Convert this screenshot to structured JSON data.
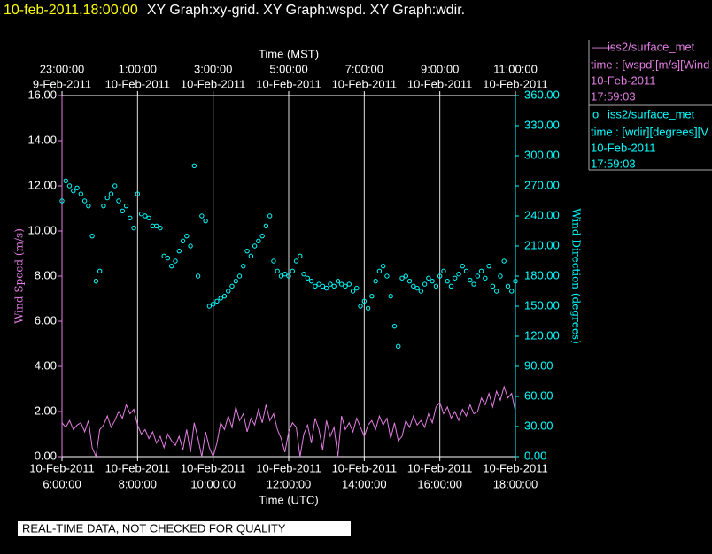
{
  "chart_data": {
    "type": "line_scatter",
    "title_time": "10-feb-2011,18:00:00",
    "title": "XY Graph:xy-grid.  XY Graph:wspd.  XY Graph:wdir.",
    "xlabel": "Time (UTC)",
    "x2label": "Time (MST)",
    "ylabel": "Wind Speed (m/s)",
    "y2label": "Wind Direction (degrees)",
    "note": "REAL-TIME DATA, NOT CHECKED FOR QUALITY",
    "xlim": [
      6,
      18
    ],
    "ylim": [
      0,
      16
    ],
    "y2lim": [
      0,
      360
    ],
    "grid": true,
    "xticks": [
      {
        "value": 6,
        "label": "6:00:00",
        "date": "10-Feb-2011"
      },
      {
        "value": 8,
        "label": "8:00:00",
        "date": "10-Feb-2011"
      },
      {
        "value": 10,
        "label": "10:00:00",
        "date": "10-Feb-2011"
      },
      {
        "value": 12,
        "label": "12:00:00",
        "date": "10-Feb-2011"
      },
      {
        "value": 14,
        "label": "14:00:00",
        "date": "10-Feb-2011"
      },
      {
        "value": 16,
        "label": "16:00:00",
        "date": "10-Feb-2011"
      },
      {
        "value": 18,
        "label": "18:00:00",
        "date": "10-Feb-2011"
      }
    ],
    "x2ticks": [
      {
        "value": 6,
        "label": "23:00:00",
        "date": "9-Feb-2011"
      },
      {
        "value": 8,
        "label": "1:00:00",
        "date": "10-Feb-2011"
      },
      {
        "value": 10,
        "label": "3:00:00",
        "date": "10-Feb-2011"
      },
      {
        "value": 12,
        "label": "5:00:00",
        "date": "10-Feb-2011"
      },
      {
        "value": 14,
        "label": "7:00:00",
        "date": "10-Feb-2011"
      },
      {
        "value": 16,
        "label": "9:00:00",
        "date": "10-Feb-2011"
      },
      {
        "value": 18,
        "label": "11:00:00",
        "date": "10-Feb-2011"
      }
    ],
    "yticks": [
      {
        "value": 0,
        "label": "0.00"
      },
      {
        "value": 2,
        "label": "2.00"
      },
      {
        "value": 4,
        "label": "4.00"
      },
      {
        "value": 6,
        "label": "6.00"
      },
      {
        "value": 8,
        "label": "8.00"
      },
      {
        "value": 10,
        "label": "10.00"
      },
      {
        "value": 12,
        "label": "12.00"
      },
      {
        "value": 14,
        "label": "14.00"
      },
      {
        "value": 16,
        "label": "16.00"
      }
    ],
    "y2ticks": [
      {
        "value": 0,
        "label": "0.00"
      },
      {
        "value": 30,
        "label": "30.00"
      },
      {
        "value": 60,
        "label": "60.00"
      },
      {
        "value": 90,
        "label": "90.00"
      },
      {
        "value": 120,
        "label": "120.00"
      },
      {
        "value": 150,
        "label": "150.00"
      },
      {
        "value": 180,
        "label": "180.00"
      },
      {
        "value": 210,
        "label": "210.00"
      },
      {
        "value": 240,
        "label": "240.00"
      },
      {
        "value": 270,
        "label": "270.00"
      },
      {
        "value": 300,
        "label": "300.00"
      },
      {
        "value": 330,
        "label": "330.00"
      },
      {
        "value": 360,
        "label": "360.00"
      }
    ],
    "x": [
      6,
      6.1,
      6.2,
      6.3,
      6.4,
      6.5,
      6.6,
      6.7,
      6.8,
      6.9,
      7,
      7.1,
      7.2,
      7.3,
      7.4,
      7.5,
      7.6,
      7.7,
      7.8,
      7.9,
      8,
      8.1,
      8.2,
      8.3,
      8.4,
      8.5,
      8.6,
      8.7,
      8.8,
      8.9,
      9,
      9.1,
      9.2,
      9.3,
      9.4,
      9.5,
      9.6,
      9.7,
      9.8,
      9.9,
      10,
      10.1,
      10.2,
      10.3,
      10.4,
      10.5,
      10.6,
      10.7,
      10.8,
      10.9,
      11,
      11.1,
      11.2,
      11.3,
      11.4,
      11.5,
      11.6,
      11.7,
      11.8,
      11.9,
      12,
      12.1,
      12.2,
      12.3,
      12.4,
      12.5,
      12.6,
      12.7,
      12.8,
      12.9,
      13,
      13.1,
      13.2,
      13.3,
      13.4,
      13.5,
      13.6,
      13.7,
      13.8,
      13.9,
      14,
      14.1,
      14.2,
      14.3,
      14.4,
      14.5,
      14.6,
      14.7,
      14.8,
      14.9,
      15,
      15.1,
      15.2,
      15.3,
      15.4,
      15.5,
      15.6,
      15.7,
      15.8,
      15.9,
      16,
      16.1,
      16.2,
      16.3,
      16.4,
      16.5,
      16.6,
      16.7,
      16.8,
      16.9,
      17,
      17.1,
      17.2,
      17.3,
      17.4,
      17.5,
      17.6,
      17.7,
      17.8,
      17.9,
      18
    ],
    "series": [
      {
        "name": "iss2/surface_met",
        "legend_marker": "——",
        "color": "#e27ee2",
        "axis": "y",
        "style": "line",
        "legend_text": [
          "time : [wspd][m/s][Wind",
          "10-Feb-2011",
          "17:59:03"
        ],
        "values": [
          1.5,
          1.3,
          1.6,
          1.2,
          1.4,
          1.5,
          1.1,
          1.6,
          0.4,
          0.0,
          1.2,
          1.4,
          1.8,
          1.3,
          1.6,
          2.0,
          1.7,
          2.3,
          1.9,
          2.1,
          1.4,
          1.0,
          1.2,
          0.8,
          1.1,
          0.6,
          0.9,
          0.4,
          1.0,
          0.7,
          0.5,
          0.9,
          0.3,
          1.2,
          0.2,
          1.5,
          0.8,
          0.0,
          1.1,
          0.4,
          0.0,
          0.6,
          1.5,
          1.2,
          1.8,
          1.3,
          2.2,
          1.6,
          1.9,
          1.1,
          1.7,
          1.4,
          2.1,
          1.5,
          2.3,
          1.6,
          1.9,
          1.2,
          0.8,
          0.2,
          1.1,
          1.5,
          1.3,
          0.0,
          1.0,
          1.4,
          0.6,
          1.7,
          1.2,
          0.3,
          1.6,
          0.9,
          1.3,
          0.0,
          1.8,
          1.2,
          1.5,
          1.1,
          1.7,
          1.3,
          0.9,
          1.4,
          1.6,
          1.2,
          1.8,
          1.4,
          1.7,
          0.8,
          1.5,
          0.7,
          0.9,
          1.6,
          1.3,
          1.8,
          1.4,
          1.6,
          1.3,
          1.9,
          1.5,
          2.2,
          2.4,
          1.9,
          2.2,
          1.7,
          2.0,
          1.6,
          2.1,
          1.8,
          2.3,
          1.9,
          2.0,
          2.6,
          2.3,
          2.8,
          2.2,
          2.9,
          2.5,
          3.1,
          2.6,
          2.8,
          2.0
        ]
      },
      {
        "name": "iss2/surface_met",
        "legend_marker": "o",
        "color": "#00ffff",
        "axis": "y2",
        "style": "scatter",
        "legend_text": [
          "time : [wdir][degrees][V",
          "10-Feb-2011",
          "17:59:03"
        ],
        "values": [
          255,
          275,
          270,
          265,
          268,
          262,
          255,
          250,
          220,
          175,
          185,
          250,
          258,
          262,
          270,
          255,
          245,
          250,
          238,
          228,
          262,
          242,
          240,
          238,
          230,
          230,
          228,
          200,
          198,
          190,
          195,
          205,
          215,
          220,
          210,
          290,
          180,
          240,
          235,
          150,
          152,
          155,
          158,
          160,
          165,
          170,
          175,
          180,
          190,
          205,
          200,
          210,
          215,
          220,
          230,
          240,
          195,
          185,
          180,
          182,
          180,
          185,
          195,
          200,
          182,
          178,
          175,
          170,
          172,
          170,
          168,
          172,
          170,
          175,
          172,
          170,
          172,
          165,
          168,
          150,
          155,
          148,
          160,
          175,
          185,
          190,
          180,
          160,
          130,
          110,
          178,
          180,
          175,
          170,
          168,
          165,
          172,
          178,
          175,
          170,
          180,
          185,
          175,
          170,
          178,
          182,
          190,
          185,
          176,
          172,
          180,
          185,
          178,
          190,
          170,
          165,
          180,
          195,
          170,
          165,
          175
        ]
      }
    ]
  }
}
